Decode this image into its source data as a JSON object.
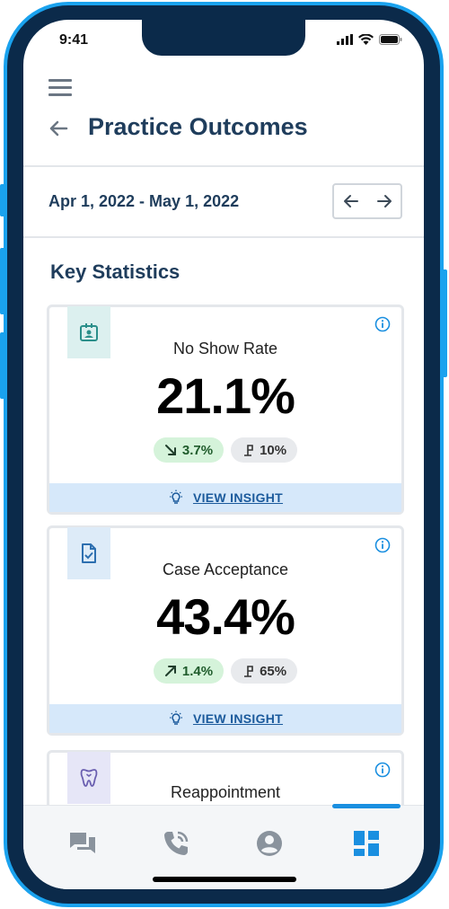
{
  "status_bar": {
    "time": "9:41"
  },
  "header": {
    "title": "Practice Outcomes"
  },
  "date_filter": {
    "range": "Apr 1, 2022 - May 1, 2022"
  },
  "section": {
    "title": "Key Statistics"
  },
  "cards": [
    {
      "label": "No Show Rate",
      "value": "21.1%",
      "change": "3.7%",
      "change_direction": "down",
      "goal": "10%",
      "icon": "patient-badge-icon",
      "insight_label": "VIEW INSIGHT"
    },
    {
      "label": "Case Acceptance",
      "value": "43.4%",
      "change": "1.4%",
      "change_direction": "up",
      "goal": "65%",
      "icon": "document-check-icon",
      "insight_label": "VIEW INSIGHT"
    },
    {
      "label": "Reappointment",
      "icon": "tooth-icon"
    }
  ],
  "tabs": [
    {
      "icon": "chat-icon"
    },
    {
      "icon": "phone-call-icon"
    },
    {
      "icon": "profile-icon"
    },
    {
      "icon": "dashboard-icon",
      "active": true
    }
  ],
  "colors": {
    "frame": "#0b2a4a",
    "frame_border": "#1aa2ee",
    "title": "#1f3d5c",
    "accent": "#1a8fe0",
    "positive_pill": "#d5f3da",
    "insight_bar": "#d6e8fa"
  }
}
